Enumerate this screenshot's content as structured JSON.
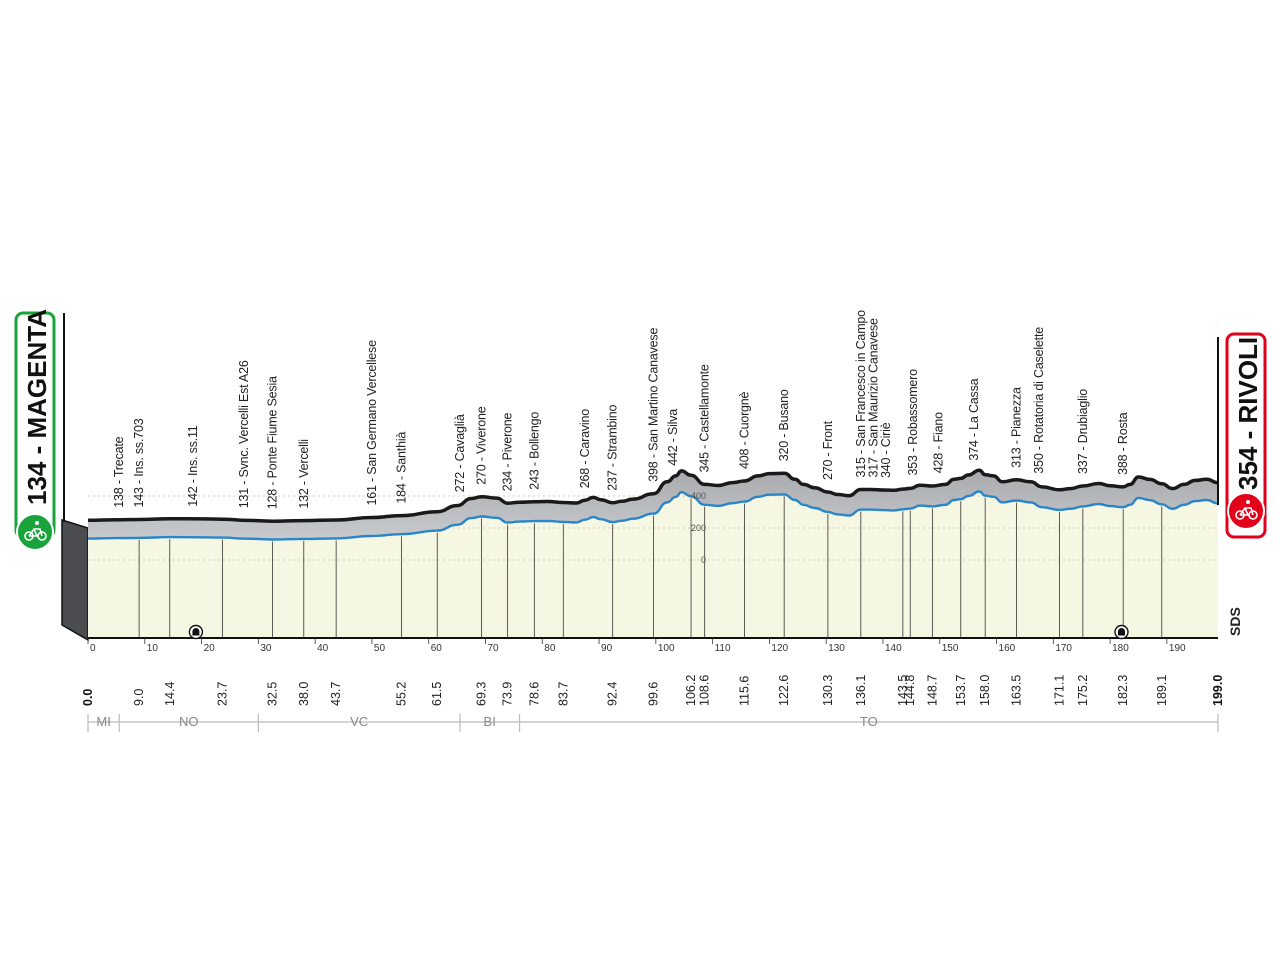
{
  "chart_data": {
    "type": "area",
    "title": "",
    "xlabel": "",
    "ylabel": "",
    "xlim": [
      0,
      199
    ],
    "km_ticks": [
      "0",
      "10",
      "20",
      "30",
      "40",
      "50",
      "60",
      "70",
      "80",
      "90",
      "100",
      "110",
      "120",
      "130",
      "140",
      "150",
      "160",
      "170",
      "180",
      "190"
    ],
    "altitude_ticks": [
      "400",
      "200",
      "0"
    ],
    "start": {
      "label": "134 - MAGENTA",
      "distance": "0.0",
      "color": "#1aa33a"
    },
    "finish": {
      "label": "354 - RIVOLI",
      "distance": "199.0",
      "color": "#e3001b"
    },
    "profile": {
      "x": [
        0,
        5,
        9,
        14.4,
        20,
        23.7,
        28,
        32.5,
        38,
        43.7,
        50,
        55.2,
        61.5,
        65,
        67.5,
        69.3,
        72,
        73.9,
        76,
        78.6,
        81,
        83.7,
        86,
        87.5,
        89,
        90.3,
        92.4,
        94,
        96,
        99.6,
        102,
        103.5,
        104.5,
        106.2,
        108.6,
        111,
        113.5,
        115.6,
        118,
        120,
        122.6,
        124.5,
        126,
        128,
        130.3,
        132,
        134,
        136.1,
        138,
        140,
        142,
        143.5,
        144.8,
        146.5,
        148.7,
        151,
        152.5,
        153.7,
        155,
        157,
        158,
        159.5,
        161,
        163.5,
        166,
        168,
        171.1,
        173,
        175.2,
        178,
        180,
        182.3,
        183.5,
        185,
        187,
        189.1,
        191,
        193,
        195,
        197,
        199
      ],
      "y": [
        134,
        137,
        138,
        143,
        142,
        140,
        133,
        128,
        132,
        135,
        150,
        161,
        184,
        220,
        262,
        272,
        264,
        234,
        240,
        243,
        244,
        238,
        235,
        252,
        268,
        255,
        237,
        245,
        258,
        290,
        360,
        395,
        424,
        398,
        345,
        338,
        355,
        365,
        395,
        408,
        410,
        375,
        345,
        325,
        300,
        285,
        278,
        315,
        315,
        312,
        310,
        317,
        321,
        340,
        335,
        345,
        375,
        380,
        400,
        428,
        402,
        395,
        360,
        372,
        360,
        330,
        313,
        320,
        335,
        350,
        337,
        330,
        345,
        388,
        374,
        348,
        320,
        345,
        368,
        375,
        354
      ],
      "min_alt": 0
    },
    "waypoints": [
      {
        "x": 5.5,
        "label": "138 - Trecate"
      },
      {
        "x": 9.0,
        "label": "143 - Ins. ss.703"
      },
      {
        "x": 18.5,
        "label": "142 - Ins. ss.11"
      },
      {
        "x": 27.5,
        "label": "131 - Svnc. Vercelli Est A26"
      },
      {
        "x": 32.5,
        "label": "128 - Ponte Fiume Sesia"
      },
      {
        "x": 38.0,
        "label": "132 - Vercelli"
      },
      {
        "x": 50.0,
        "label": "161 - San Germano Vercellese"
      },
      {
        "x": 55.2,
        "label": "184 - Santhià"
      },
      {
        "x": 65.5,
        "label": "272 - Cavaglià"
      },
      {
        "x": 69.3,
        "label": "270 - Viverone"
      },
      {
        "x": 73.9,
        "label": "234 - Piverone"
      },
      {
        "x": 78.6,
        "label": "243 - Bollengo"
      },
      {
        "x": 87.5,
        "label": "268 - Caravino"
      },
      {
        "x": 92.4,
        "label": "237 - Strambino"
      },
      {
        "x": 99.6,
        "label": "398 - San Martino Canavese"
      },
      {
        "x": 103.0,
        "label": "442 - Silva"
      },
      {
        "x": 108.6,
        "label": "345 - Castellamonte"
      },
      {
        "x": 115.6,
        "label": "408 - Cuorgnè"
      },
      {
        "x": 122.6,
        "label": "320 - Busano"
      },
      {
        "x": 130.3,
        "label": "270 - Front"
      },
      {
        "x": 136.1,
        "label": "315 - San Francesco in Campo"
      },
      {
        "x": 138.3,
        "label": "317 - San Maurizio Canavese"
      },
      {
        "x": 140.5,
        "label": "340 - Ciriè"
      },
      {
        "x": 145.3,
        "label": "353 - Robassomero"
      },
      {
        "x": 149.8,
        "label": "428 - Fiano"
      },
      {
        "x": 156.0,
        "label": "374 - La Cassa"
      },
      {
        "x": 163.5,
        "label": "313 - Pianezza"
      },
      {
        "x": 167.5,
        "label": "350 - Rotatoria  di Caselette"
      },
      {
        "x": 175.2,
        "label": "337 - Drubiaglio"
      },
      {
        "x": 182.3,
        "label": "388 - Rosta"
      }
    ],
    "distances": [
      "0.0",
      "9.0",
      "14.4",
      "23.7",
      "32.5",
      "38.0",
      "43.7",
      "55.2",
      "61.5",
      "69.3",
      "73.9",
      "78.6",
      "83.7",
      "92.4",
      "99.6",
      "106.2",
      "108.6",
      "115.6",
      "122.6",
      "130.3",
      "136.1",
      "143.5",
      "144.8",
      "148.7",
      "153.7",
      "158.0",
      "163.5",
      "171.1",
      "175.2",
      "182.3",
      "189.1",
      "199.0"
    ],
    "provinces": [
      {
        "label": "MI",
        "from": 0,
        "to": 5.5
      },
      {
        "label": "NO",
        "from": 5.5,
        "to": 30.0
      },
      {
        "label": "VC",
        "from": 30.0,
        "to": 65.5
      },
      {
        "label": "BI",
        "from": 65.5,
        "to": 76.0
      },
      {
        "label": "TO",
        "from": 76.0,
        "to": 199
      }
    ],
    "tunnels": [
      19.0,
      182.0
    ]
  },
  "icons": {
    "start": "cyclist-icon",
    "finish": "cyclist-icon",
    "tunnel": "tunnel-icon"
  },
  "brand": "SDS"
}
